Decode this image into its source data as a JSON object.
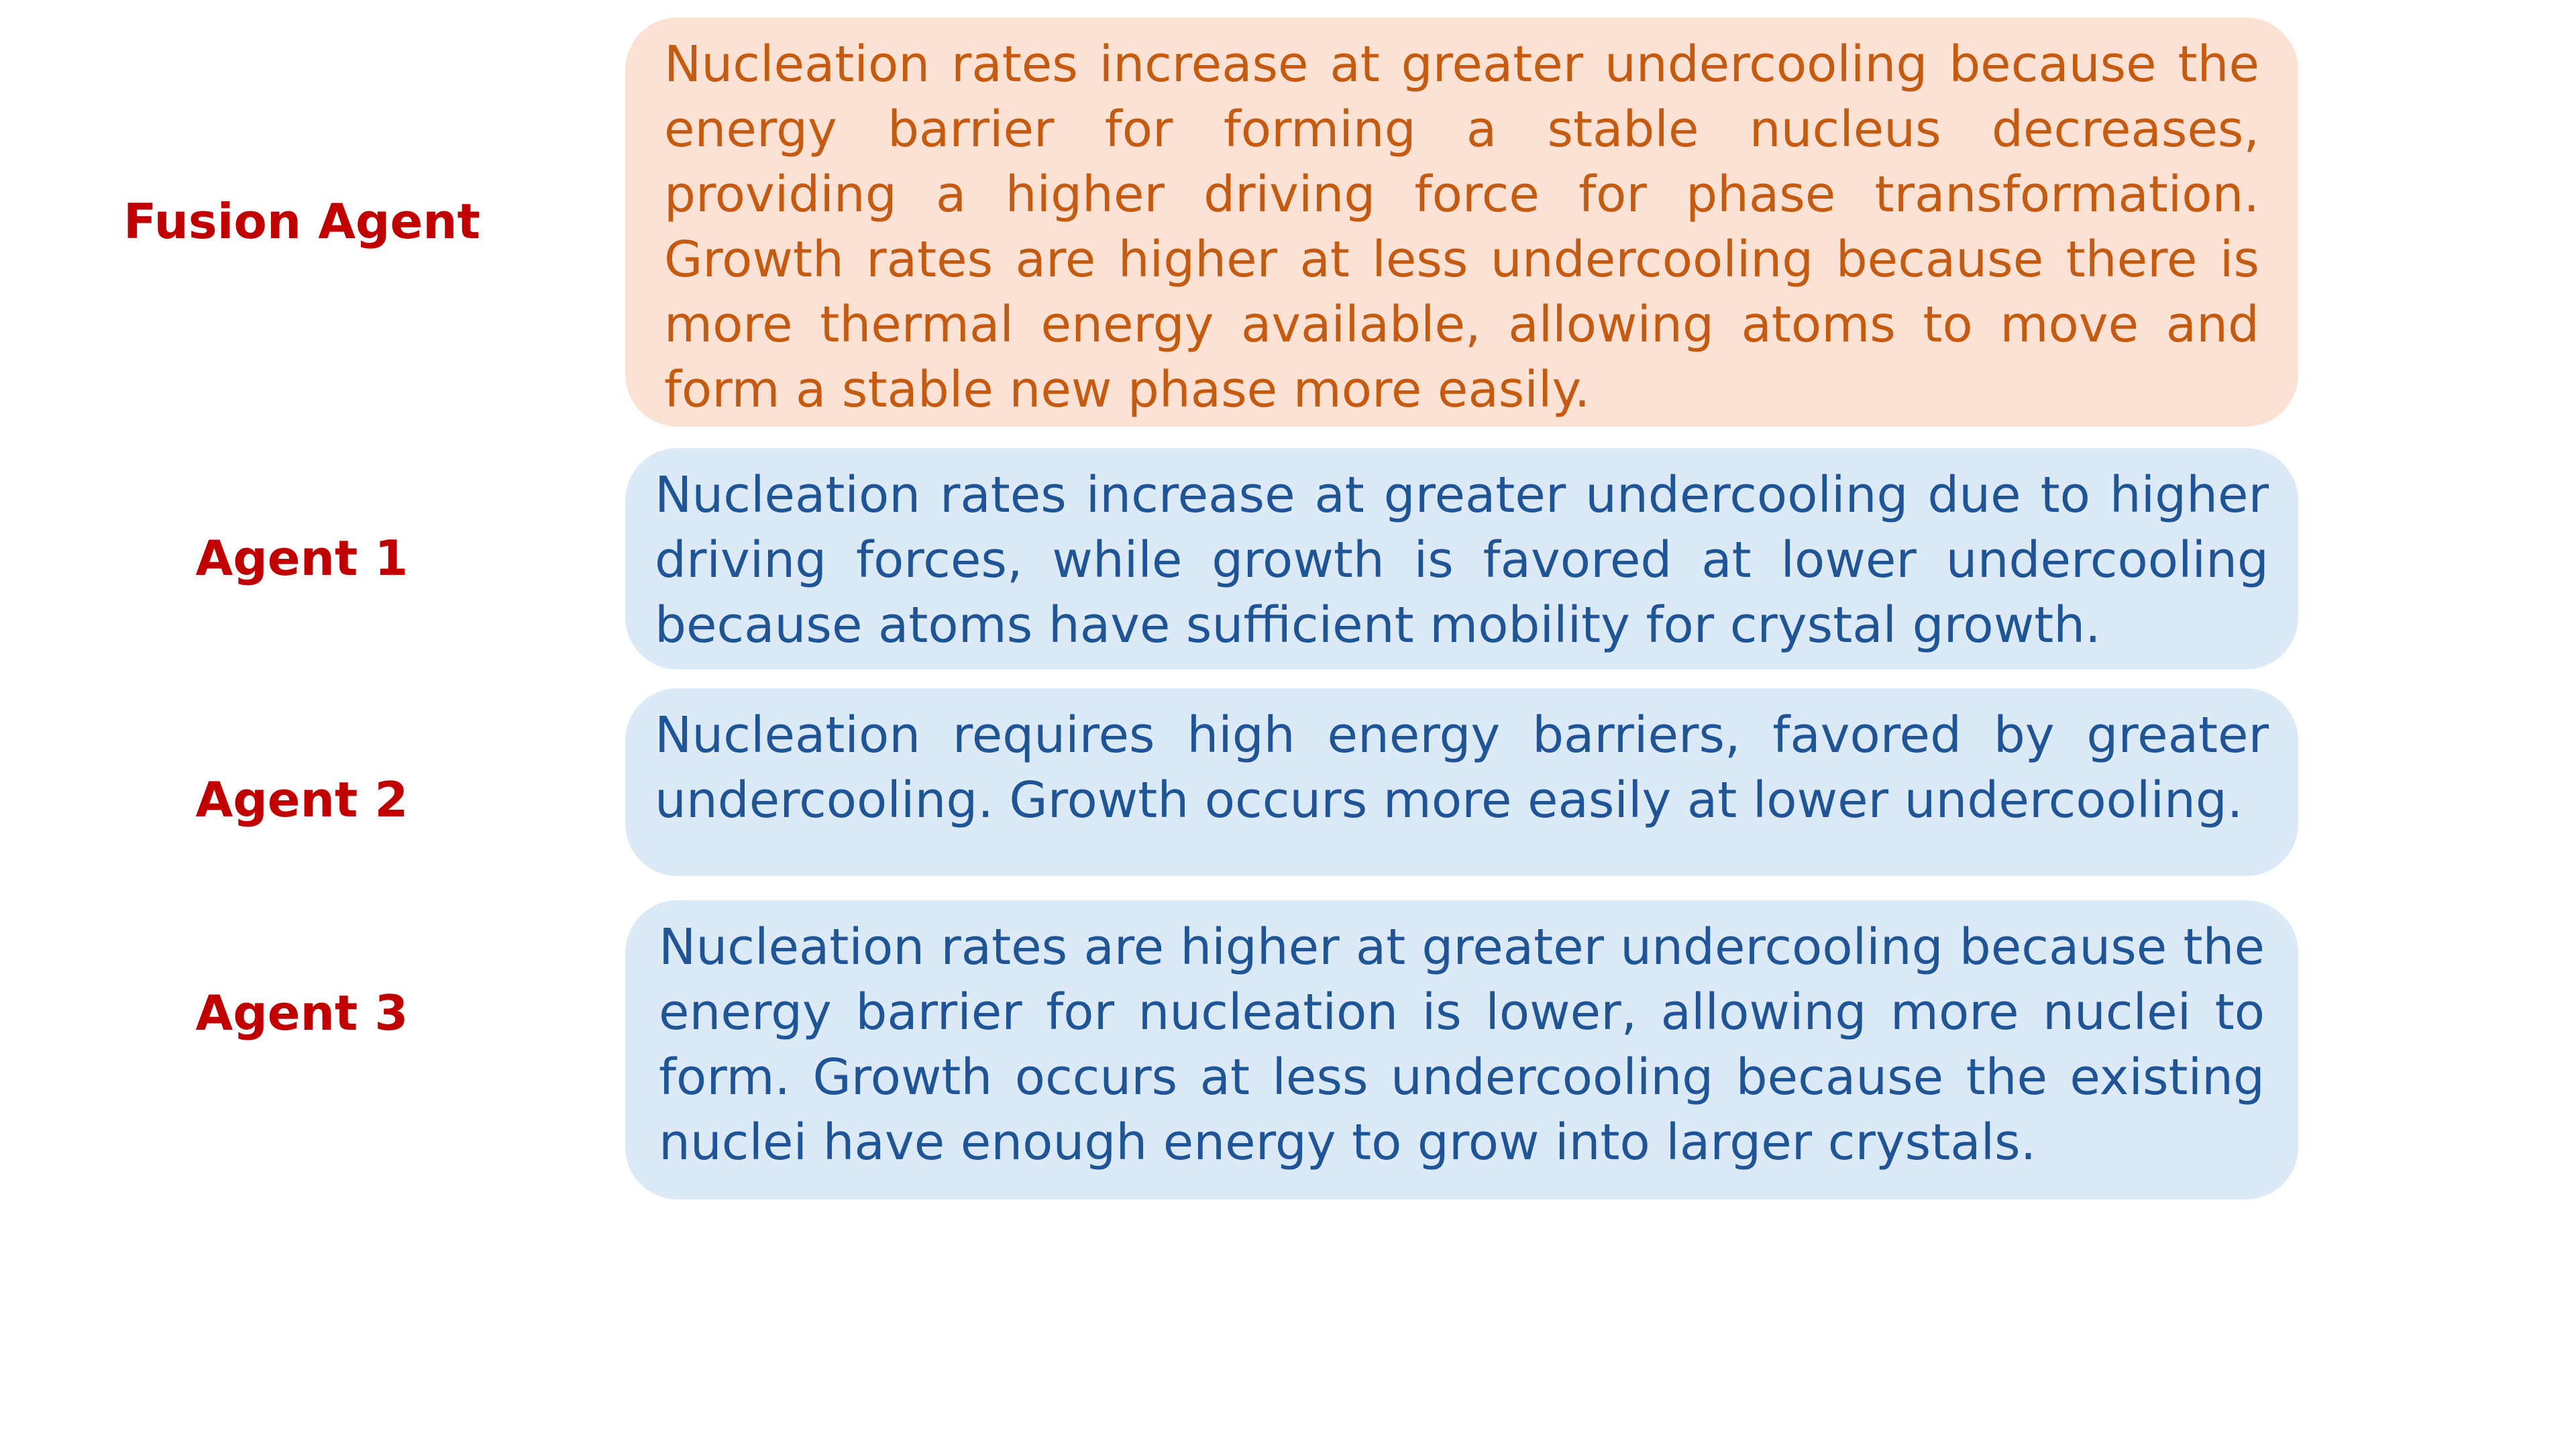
{
  "colors": {
    "label_text": "#c00000",
    "fusion_fill": "#fbe2d5",
    "fusion_text": "#c55a11",
    "agent_fill": "#dce9f6",
    "agent_text": "#1f5596"
  },
  "rows": [
    {
      "label": "Fusion Agent",
      "text": "Nucleation rates increase at greater undercooling because the energy barrier for forming a stable nucleus decreases, providing a higher driving force for phase transformation. Growth rates are higher at less undercooling because there is more thermal energy available, allowing atoms to move and form a stable new phase more easily."
    },
    {
      "label": "Agent 1",
      "text": "Nucleation rates increase at greater undercooling due to higher driving forces, while growth is favored at lower undercooling because atoms have sufficient mobility for crystal growth."
    },
    {
      "label": "Agent 2",
      "text": "Nucleation requires high energy barriers, favored by greater undercooling. Growth occurs more easily at lower undercooling."
    },
    {
      "label": "Agent 3",
      "text": "Nucleation rates are higher at greater undercooling because the energy barrier for nucleation is lower, allowing more nuclei to form. Growth occurs at less undercooling because the existing nuclei have enough energy to grow into larger crystals."
    }
  ]
}
